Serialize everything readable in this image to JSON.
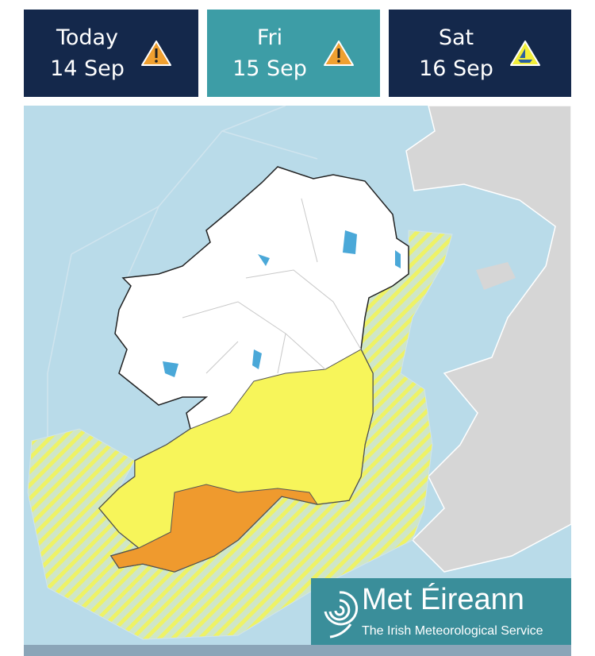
{
  "tabs": [
    {
      "day": "Today",
      "date": "14 Sep"
    },
    {
      "day": "Fri",
      "date": "15 Sep"
    },
    {
      "day": "Sat",
      "date": "16 Sep"
    }
  ],
  "logo": {
    "name": "Met Éireann",
    "tagline": "The Irish Meteorological Service"
  }
}
